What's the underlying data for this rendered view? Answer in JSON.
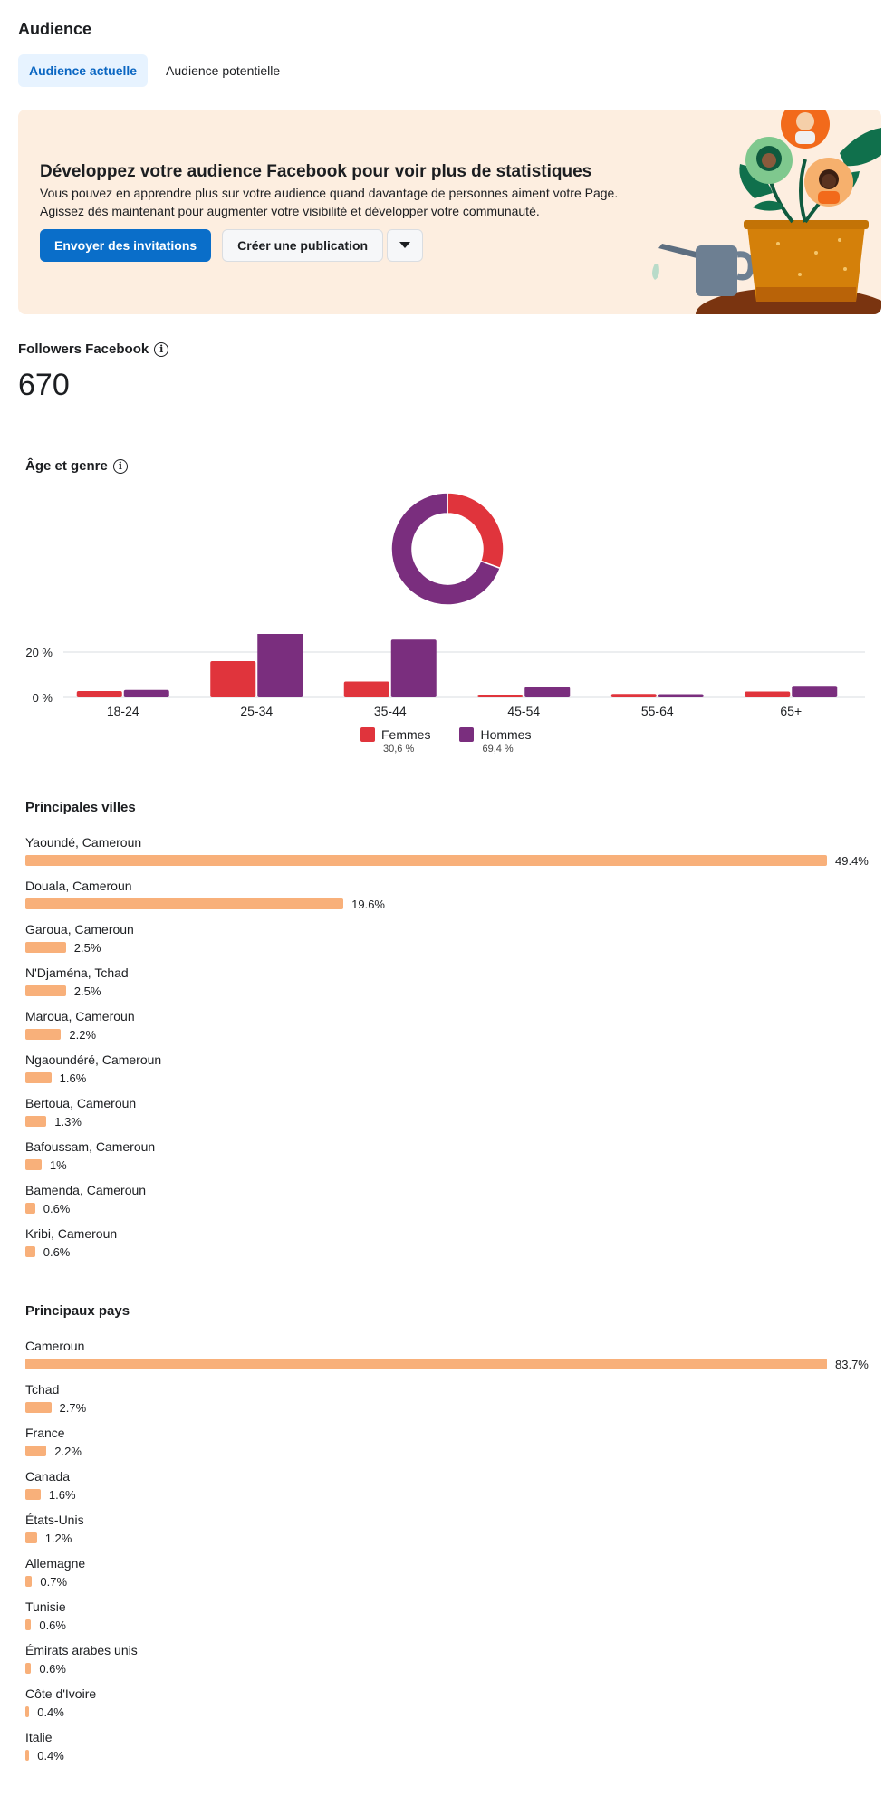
{
  "page": {
    "title": "Audience"
  },
  "tabs": [
    {
      "label": "Audience actuelle",
      "active": true
    },
    {
      "label": "Audience potentielle",
      "active": false
    }
  ],
  "banner": {
    "title": "Développez votre audience Facebook pour voir plus de statistiques",
    "text": "Vous pouvez en apprendre plus sur votre audience quand davantage de personnes aiment votre Page. Agissez dès maintenant pour augmenter votre visibilité et développer votre communauté.",
    "primary_button": "Envoyer des invitations",
    "secondary_button": "Créer une publication",
    "dropdown_icon": "caret-down-icon"
  },
  "followers": {
    "label": "Followers Facebook",
    "count": "670"
  },
  "age_gender": {
    "label": "Âge et genre",
    "legend": [
      {
        "label": "Femmes",
        "pct": "30,6 %",
        "color": "#e0343c"
      },
      {
        "label": "Hommes",
        "pct": "69,4 %",
        "color": "#7a2e7e"
      }
    ]
  },
  "chart_data": [
    {
      "type": "pie",
      "categories": [
        "Femmes",
        "Hommes"
      ],
      "values": [
        30.6,
        69.4
      ],
      "colors": [
        "#e0343c",
        "#7a2e7e"
      ]
    },
    {
      "type": "bar",
      "categories": [
        "18-24",
        "25-34",
        "35-44",
        "45-54",
        "55-64",
        "65+"
      ],
      "series": [
        {
          "name": "Femmes",
          "values": [
            2.8,
            16.0,
            7.0,
            1.2,
            1.5,
            2.6
          ],
          "color": "#e0343c"
        },
        {
          "name": "Hommes",
          "values": [
            3.3,
            30.0,
            25.5,
            4.6,
            1.4,
            5.1
          ],
          "color": "#7a2e7e"
        }
      ],
      "y_ticks": [
        "0 %",
        "20 %"
      ],
      "ylim": [
        0,
        30
      ]
    }
  ],
  "cities": {
    "title": "Principales villes",
    "items": [
      {
        "label": "Yaoundé, Cameroun",
        "pct": "49.4%",
        "value": 49.4
      },
      {
        "label": "Douala, Cameroun",
        "pct": "19.6%",
        "value": 19.6
      },
      {
        "label": "Garoua, Cameroun",
        "pct": "2.5%",
        "value": 2.5
      },
      {
        "label": "N'Djaména, Tchad",
        "pct": "2.5%",
        "value": 2.5
      },
      {
        "label": "Maroua, Cameroun",
        "pct": "2.2%",
        "value": 2.2
      },
      {
        "label": "Ngaoundéré, Cameroun",
        "pct": "1.6%",
        "value": 1.6
      },
      {
        "label": "Bertoua, Cameroun",
        "pct": "1.3%",
        "value": 1.3
      },
      {
        "label": "Bafoussam, Cameroun",
        "pct": "1%",
        "value": 1.0
      },
      {
        "label": "Bamenda, Cameroun",
        "pct": "0.6%",
        "value": 0.6
      },
      {
        "label": "Kribi, Cameroun",
        "pct": "0.6%",
        "value": 0.6
      }
    ]
  },
  "countries": {
    "title": "Principaux pays",
    "items": [
      {
        "label": "Cameroun",
        "pct": "83.7%",
        "value": 83.7
      },
      {
        "label": "Tchad",
        "pct": "2.7%",
        "value": 2.7
      },
      {
        "label": "France",
        "pct": "2.2%",
        "value": 2.2
      },
      {
        "label": "Canada",
        "pct": "1.6%",
        "value": 1.6
      },
      {
        "label": "États-Unis",
        "pct": "1.2%",
        "value": 1.2
      },
      {
        "label": "Allemagne",
        "pct": "0.7%",
        "value": 0.7
      },
      {
        "label": "Tunisie",
        "pct": "0.6%",
        "value": 0.6
      },
      {
        "label": "Émirats arabes unis",
        "pct": "0.6%",
        "value": 0.6
      },
      {
        "label": "Côte d'Ivoire",
        "pct": "0.4%",
        "value": 0.4
      },
      {
        "label": "Italie",
        "pct": "0.4%",
        "value": 0.4
      }
    ]
  },
  "colors": {
    "accent": "#0a6ec9",
    "bar": "#f8b07a",
    "banner_bg": "#fdeee0"
  }
}
